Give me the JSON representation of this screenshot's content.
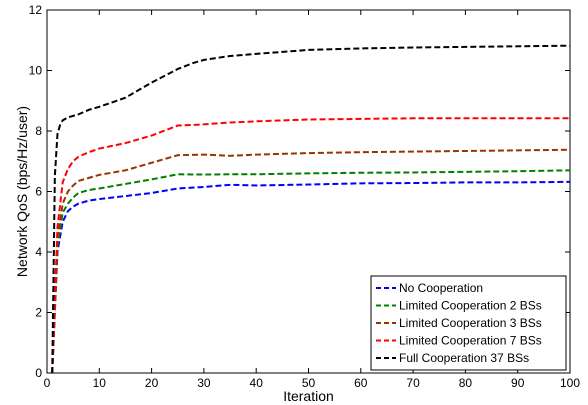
{
  "chart_data": {
    "type": "line",
    "title": "",
    "xlabel": "Iteration",
    "ylabel": "Network QoS (bps/Hz/user)",
    "xlim": [
      0,
      100
    ],
    "ylim": [
      0,
      12
    ],
    "xticks": [
      "0",
      "10",
      "20",
      "30",
      "40",
      "50",
      "60",
      "70",
      "80",
      "90",
      "100"
    ],
    "yticks": [
      "0",
      "2",
      "4",
      "6",
      "8",
      "10",
      "12"
    ],
    "grid": false,
    "legend_position": "bottom-right",
    "line_style": "dashed",
    "series": [
      {
        "name": "No Cooperation",
        "color": "#0000ff",
        "x": [
          1,
          2,
          3,
          4,
          5,
          6,
          8,
          10,
          15,
          20,
          25,
          30,
          35,
          40,
          50,
          60,
          70,
          80,
          90,
          100
        ],
        "y": [
          0,
          4.0,
          5.0,
          5.35,
          5.5,
          5.6,
          5.7,
          5.75,
          5.85,
          5.95,
          6.1,
          6.15,
          6.22,
          6.2,
          6.23,
          6.27,
          6.28,
          6.3,
          6.3,
          6.32
        ]
      },
      {
        "name": "Limited Cooperation 2 BSs",
        "color": "#008000",
        "x": [
          1,
          2,
          3,
          4,
          5,
          6,
          8,
          10,
          15,
          20,
          25,
          30,
          35,
          40,
          50,
          60,
          70,
          80,
          90,
          100
        ],
        "y": [
          0,
          4.2,
          5.3,
          5.6,
          5.8,
          5.95,
          6.05,
          6.1,
          6.25,
          6.4,
          6.57,
          6.56,
          6.57,
          6.57,
          6.6,
          6.62,
          6.63,
          6.65,
          6.67,
          6.7
        ]
      },
      {
        "name": "Limited Cooperation 3 BSs",
        "color": "#993300",
        "x": [
          1,
          2,
          3,
          4,
          5,
          6,
          8,
          10,
          15,
          20,
          25,
          30,
          35,
          40,
          50,
          60,
          70,
          80,
          90,
          100
        ],
        "y": [
          0,
          4.4,
          5.6,
          6.0,
          6.2,
          6.35,
          6.45,
          6.55,
          6.7,
          6.95,
          7.2,
          7.22,
          7.18,
          7.22,
          7.27,
          7.3,
          7.32,
          7.34,
          7.36,
          7.38
        ]
      },
      {
        "name": "Limited Cooperation 7 BSs",
        "color": "#ff0000",
        "x": [
          1,
          2,
          3,
          4,
          5,
          6,
          8,
          10,
          15,
          20,
          25,
          28,
          30,
          35,
          40,
          50,
          60,
          70,
          80,
          90,
          100
        ],
        "y": [
          0,
          4.8,
          6.3,
          6.75,
          7.0,
          7.15,
          7.3,
          7.42,
          7.6,
          7.85,
          8.18,
          8.2,
          8.22,
          8.28,
          8.32,
          8.38,
          8.4,
          8.42,
          8.42,
          8.42,
          8.42
        ]
      },
      {
        "name": "Full Cooperation 37 BSs",
        "color": "#000000",
        "x": [
          1,
          1.5,
          2,
          2.5,
          3,
          4,
          5,
          6,
          8,
          10,
          15,
          20,
          25,
          28,
          30,
          35,
          40,
          50,
          60,
          70,
          80,
          90,
          100
        ],
        "y": [
          0,
          6.5,
          7.9,
          8.2,
          8.35,
          8.45,
          8.5,
          8.55,
          8.7,
          8.8,
          9.1,
          9.6,
          10.05,
          10.25,
          10.35,
          10.48,
          10.55,
          10.68,
          10.73,
          10.76,
          10.78,
          10.8,
          10.82
        ]
      }
    ]
  }
}
